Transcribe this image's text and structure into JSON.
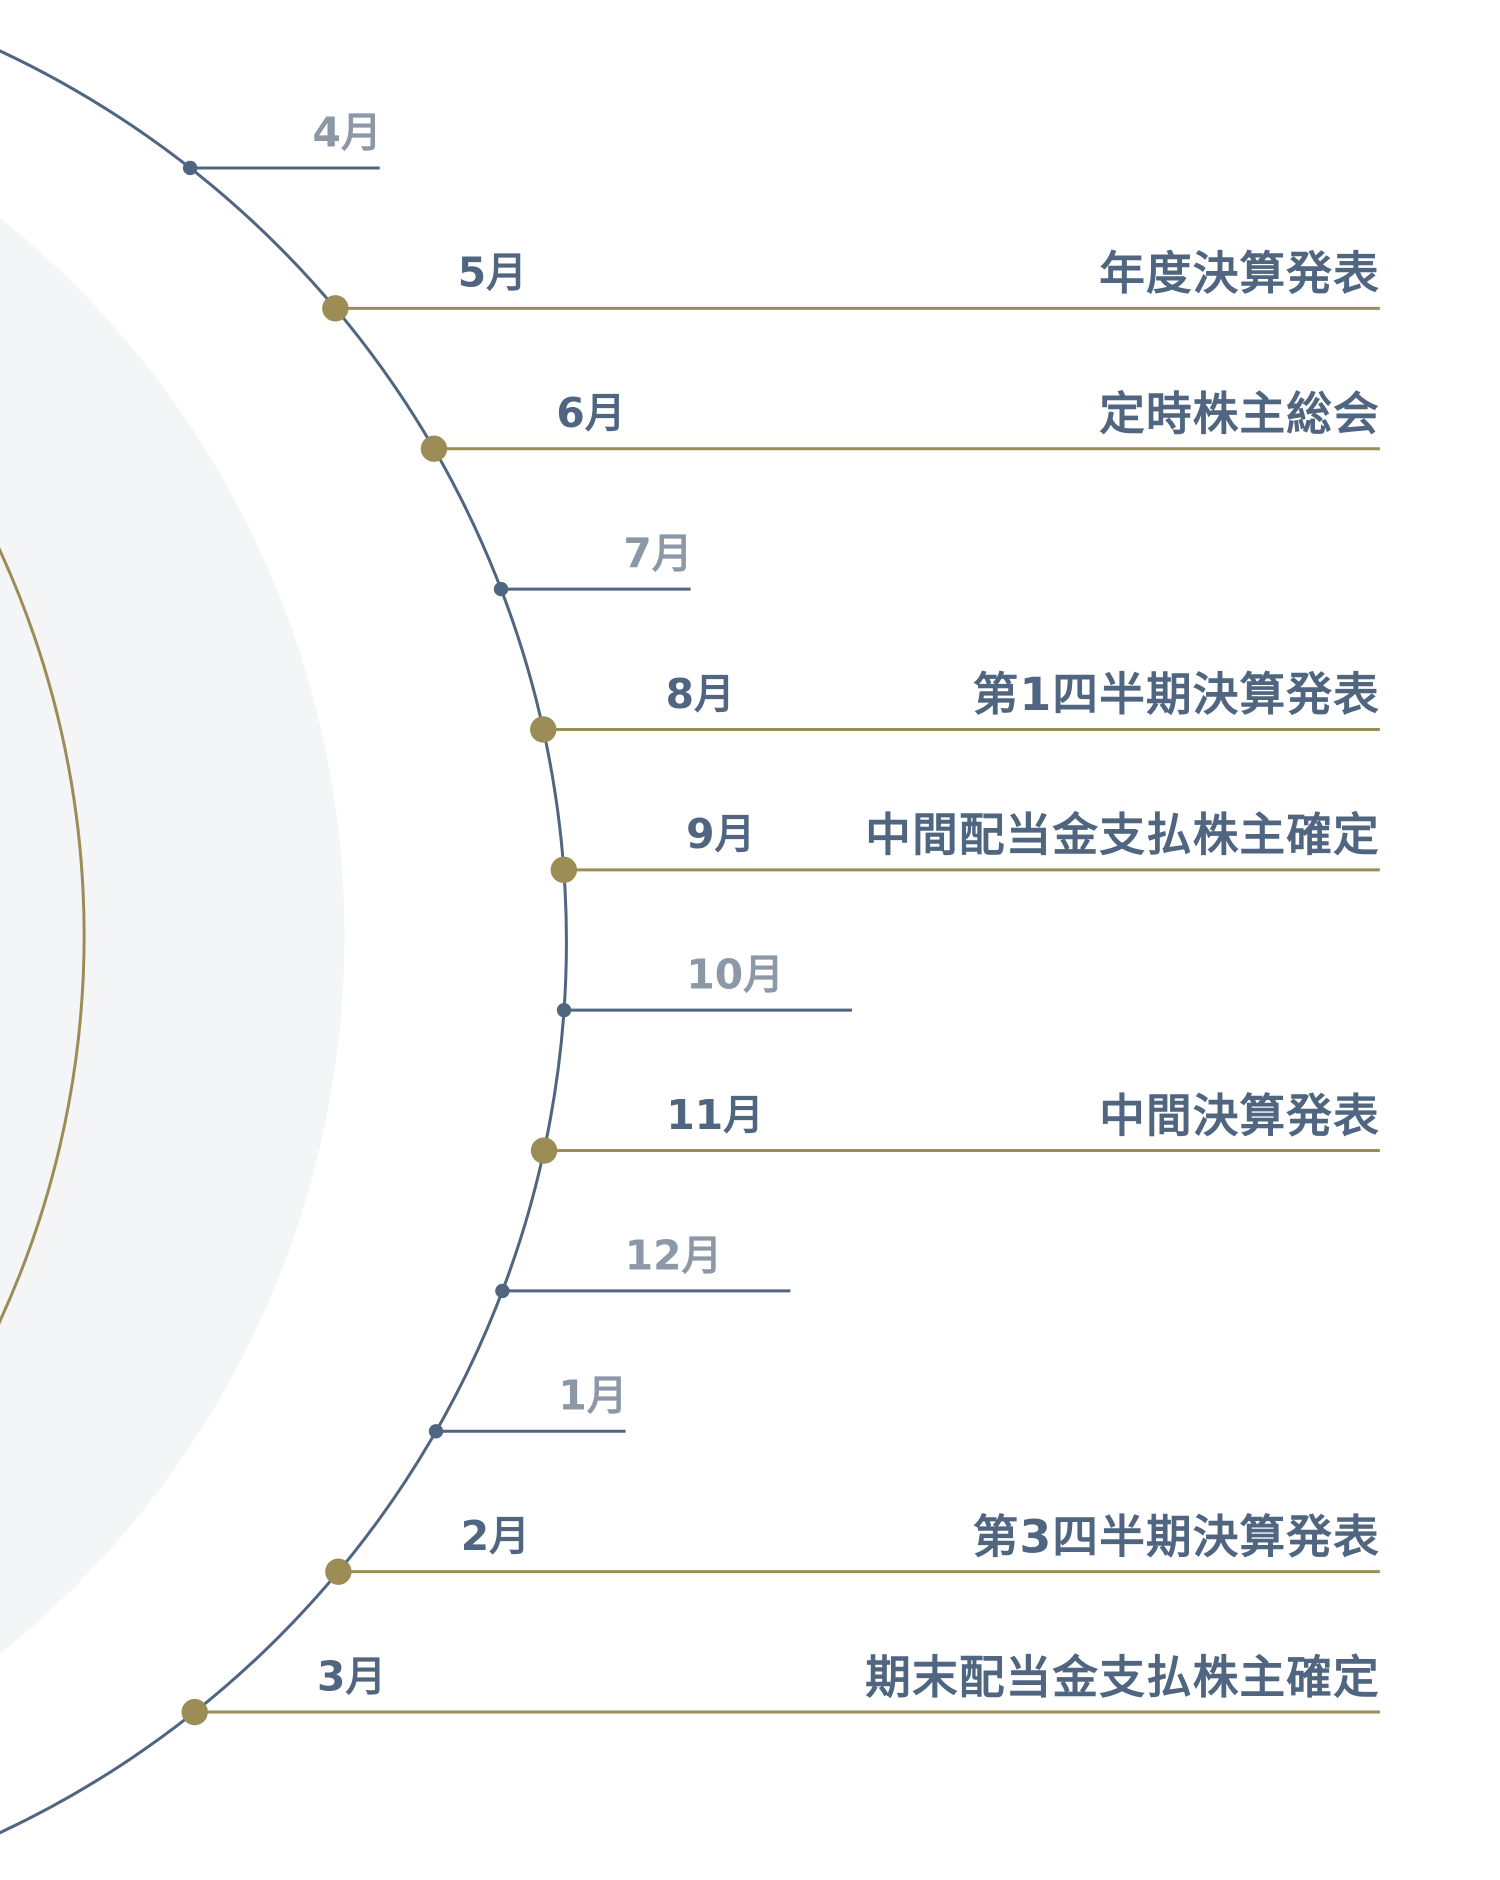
{
  "months": [
    {
      "month": "4月"
    },
    {
      "month": "5月",
      "event": "年度決算発表"
    },
    {
      "month": "6月",
      "event": "定時株主総会"
    },
    {
      "month": "7月"
    },
    {
      "month": "8月",
      "event": "第1四半期決算発表"
    },
    {
      "month": "9月",
      "event": "中間配当金支払株主確定"
    },
    {
      "month": "10月"
    },
    {
      "month": "11月",
      "event": "中間決算発表"
    },
    {
      "month": "12月"
    },
    {
      "month": "1月"
    },
    {
      "month": "2月",
      "event": "第3四半期決算発表"
    },
    {
      "month": "3月",
      "event": "期末配当金支払株主確定"
    }
  ]
}
